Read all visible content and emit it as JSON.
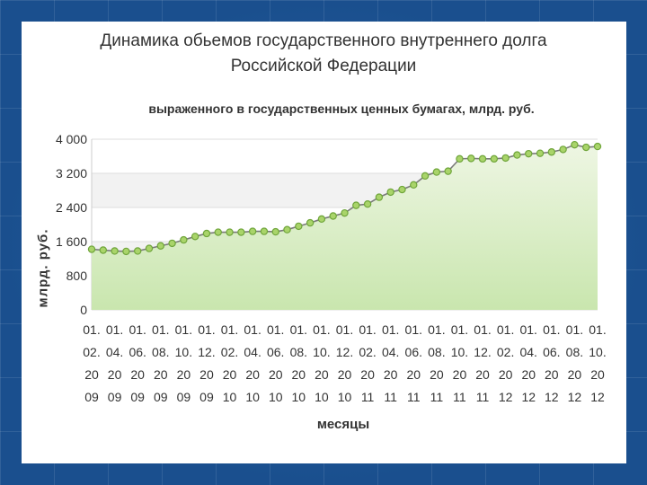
{
  "chart_data": {
    "type": "area",
    "title_lines": [
      "Динамика обьемов государственного внутреннего долга",
      "Российской Федерации"
    ],
    "subtitle": "выраженного в государственных ценных бумагах, млрд. руб.",
    "ylabel": "млрд. руб.",
    "xlabel": "месяцы",
    "ylim": [
      0,
      4000
    ],
    "yticks": [
      0,
      800,
      1600,
      2400,
      3200,
      4000
    ],
    "ytick_labels": [
      "0",
      "800",
      "1 600",
      "2 400",
      "3 200",
      "4 000"
    ],
    "grid": true,
    "legend": "none",
    "x_tick_labels": [
      [
        "01.",
        "02.",
        "20",
        "09"
      ],
      [
        "01.",
        "04.",
        "20",
        "09"
      ],
      [
        "01.",
        "06.",
        "20",
        "09"
      ],
      [
        "01.",
        "08.",
        "20",
        "09"
      ],
      [
        "01.",
        "10.",
        "20",
        "09"
      ],
      [
        "01.",
        "12.",
        "20",
        "09"
      ],
      [
        "01.",
        "02.",
        "20",
        "10"
      ],
      [
        "01.",
        "04.",
        "20",
        "10"
      ],
      [
        "01.",
        "06.",
        "20",
        "10"
      ],
      [
        "01.",
        "08.",
        "20",
        "10"
      ],
      [
        "01.",
        "10.",
        "20",
        "10"
      ],
      [
        "01.",
        "12.",
        "20",
        "10"
      ],
      [
        "01.",
        "02.",
        "20",
        "11"
      ],
      [
        "01.",
        "04.",
        "20",
        "11"
      ],
      [
        "01.",
        "06.",
        "20",
        "11"
      ],
      [
        "01.",
        "08.",
        "20",
        "11"
      ],
      [
        "01.",
        "10.",
        "20",
        "11"
      ],
      [
        "01.",
        "12.",
        "20",
        "11"
      ],
      [
        "01.",
        "02.",
        "20",
        "12"
      ],
      [
        "01.",
        "04.",
        "20",
        "12"
      ],
      [
        "01.",
        "06.",
        "20",
        "12"
      ],
      [
        "01.",
        "08.",
        "20",
        "12"
      ],
      [
        "01.",
        "10.",
        "20",
        "12"
      ]
    ],
    "months": [
      "01.02.2009",
      "01.03.2009",
      "01.04.2009",
      "01.05.2009",
      "01.06.2009",
      "01.07.2009",
      "01.08.2009",
      "01.09.2009",
      "01.10.2009",
      "01.11.2009",
      "01.12.2009",
      "01.01.2010",
      "01.02.2010",
      "01.03.2010",
      "01.04.2010",
      "01.05.2010",
      "01.06.2010",
      "01.07.2010",
      "01.08.2010",
      "01.09.2010",
      "01.10.2010",
      "01.11.2010",
      "01.12.2010",
      "01.01.2011",
      "01.02.2011",
      "01.03.2011",
      "01.04.2011",
      "01.05.2011",
      "01.06.2011",
      "01.07.2011",
      "01.08.2011",
      "01.09.2011",
      "01.10.2011",
      "01.11.2011",
      "01.12.2011",
      "01.01.2012",
      "01.02.2012",
      "01.03.2012",
      "01.04.2012",
      "01.05.2012",
      "01.06.2012",
      "01.07.2012",
      "01.08.2012",
      "01.09.2012",
      "01.10.2012"
    ],
    "values": [
      1420,
      1400,
      1380,
      1370,
      1380,
      1440,
      1500,
      1560,
      1640,
      1720,
      1790,
      1820,
      1820,
      1820,
      1840,
      1840,
      1830,
      1880,
      1960,
      2040,
      2130,
      2200,
      2270,
      2450,
      2480,
      2640,
      2760,
      2820,
      2930,
      3140,
      3230,
      3250,
      3540,
      3550,
      3540,
      3540,
      3560,
      3630,
      3660,
      3670,
      3700,
      3760,
      3870,
      3810,
      3830
    ],
    "colors": {
      "line": "#7a7a7a",
      "marker_fill": "#a9d46a",
      "marker_stroke": "#6fa53a",
      "area_top": "#eef6e3",
      "area_bottom": "#c9e6ae",
      "grid": "#dddddd",
      "band": "#f2f2f2"
    }
  }
}
